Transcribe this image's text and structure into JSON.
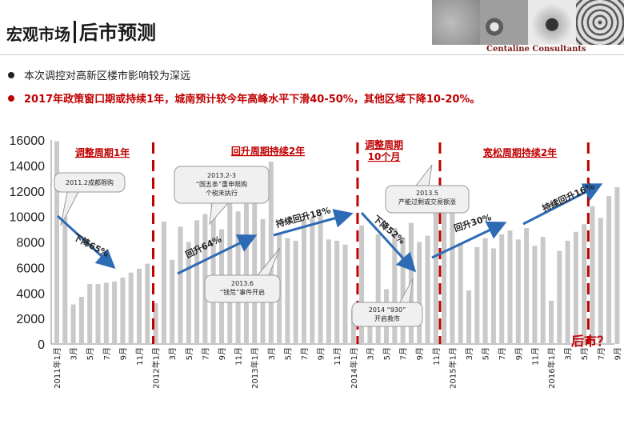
{
  "header": {
    "title_main": "宏观市场",
    "title_sub": "后市预测",
    "logo_text": "Centaline Consultants"
  },
  "bullets": [
    {
      "text": "本次调控对高新区楼市影响较为深远",
      "color": "#222222"
    },
    {
      "text": "2017年政策窗口期或持续1年，城南预计较今年高峰水平下滑40-50%，其他区域下降10-20%。",
      "color": "#c00000"
    }
  ],
  "colors": {
    "bar": "#c9c9c9",
    "arrow": "#2e6bb5",
    "divider": "#c00000",
    "phase_label": "#c00000",
    "callout_bg": "#f0f0f0"
  },
  "chart_data": {
    "type": "bar",
    "ylim": [
      0,
      16000
    ],
    "yticks": [
      0,
      2000,
      4000,
      6000,
      8000,
      10000,
      12000,
      14000,
      16000
    ],
    "categories": [
      "2011年1月",
      "2月",
      "3月",
      "4月",
      "5月",
      "6月",
      "7月",
      "8月",
      "9月",
      "10月",
      "11月",
      "12月",
      "2012年1月",
      "2月",
      "3月",
      "4月",
      "5月",
      "6月",
      "7月",
      "8月",
      "9月",
      "10月",
      "11月",
      "12月",
      "2013年1月",
      "2月",
      "3月",
      "4月",
      "5月",
      "6月",
      "7月",
      "8月",
      "9月",
      "10月",
      "11月",
      "12月",
      "2014年1月",
      "2月",
      "3月",
      "4月",
      "5月",
      "6月",
      "7月",
      "8月",
      "9月",
      "10月",
      "11月",
      "12月",
      "2015年1月",
      "2月",
      "3月",
      "4月",
      "5月",
      "6月",
      "7月",
      "8月",
      "9月",
      "10月",
      "11月",
      "12月",
      "2016年1月",
      "2月",
      "3月",
      "4月",
      "5月",
      "6月",
      "7月",
      "8月",
      "9月"
    ],
    "tick_labels": [
      "2011年1月",
      "",
      "3月",
      "",
      "5月",
      "",
      "7月",
      "",
      "9月",
      "",
      "11月",
      "",
      "2012年1月",
      "",
      "3月",
      "",
      "5月",
      "",
      "7月",
      "",
      "9月",
      "",
      "11月",
      "",
      "2013年1月",
      "",
      "3月",
      "",
      "5月",
      "",
      "7月",
      "",
      "9月",
      "",
      "11月",
      "",
      "2014年1月",
      "",
      "3月",
      "",
      "5月",
      "",
      "7月",
      "",
      "9月",
      "",
      "11月",
      "",
      "2015年1月",
      "",
      "3月",
      "",
      "5月",
      "",
      "7月",
      "",
      "9月",
      "",
      "11月",
      "",
      "2016年1月",
      "",
      "3月",
      "",
      "5月",
      "",
      "7月",
      "",
      "9月"
    ],
    "values": [
      15900,
      10000,
      3100,
      3700,
      4700,
      4700,
      4800,
      4900,
      5200,
      5600,
      5900,
      6300,
      3200,
      9600,
      6600,
      9200,
      8000,
      9700,
      10200,
      11500,
      9000,
      12600,
      10400,
      11000,
      12800,
      9800,
      14300,
      8700,
      8300,
      8100,
      9800,
      9900,
      10100,
      8200,
      8100,
      7800,
      2700,
      9300,
      2900,
      8600,
      4300,
      9100,
      8300,
      9500,
      8000,
      8500,
      10400,
      12000,
      10600,
      7900,
      4200,
      7600,
      8300,
      7500,
      8600,
      8900,
      8200,
      9100,
      7700,
      8400,
      3400,
      7300,
      8100,
      8800,
      9400,
      10800,
      9900,
      11600,
      12300
    ],
    "phases": [
      {
        "label": "调整周期1年"
      },
      {
        "label": "回升周期持续2年"
      },
      {
        "label": "调整周期\n10个月"
      },
      {
        "label": "宽松周期持续2年"
      }
    ],
    "annotations": [
      {
        "text": "2011.2成都限购"
      },
      {
        "text": "2013.2-3\n“国五条”重申限购\n个税末执行"
      },
      {
        "text": "2013.6\n“钱荒”事件开启"
      },
      {
        "text": "2013.5\n产能过剩或交易额涨"
      },
      {
        "text": "2014 “930”\n开启救市"
      }
    ],
    "trend_labels": [
      {
        "text": "下降65%"
      },
      {
        "text": "回升64%"
      },
      {
        "text": "持续回升18%"
      },
      {
        "text": "下降52%"
      },
      {
        "text": "回升30%"
      },
      {
        "text": "持续回升16%"
      }
    ],
    "future_label": "后市？"
  }
}
